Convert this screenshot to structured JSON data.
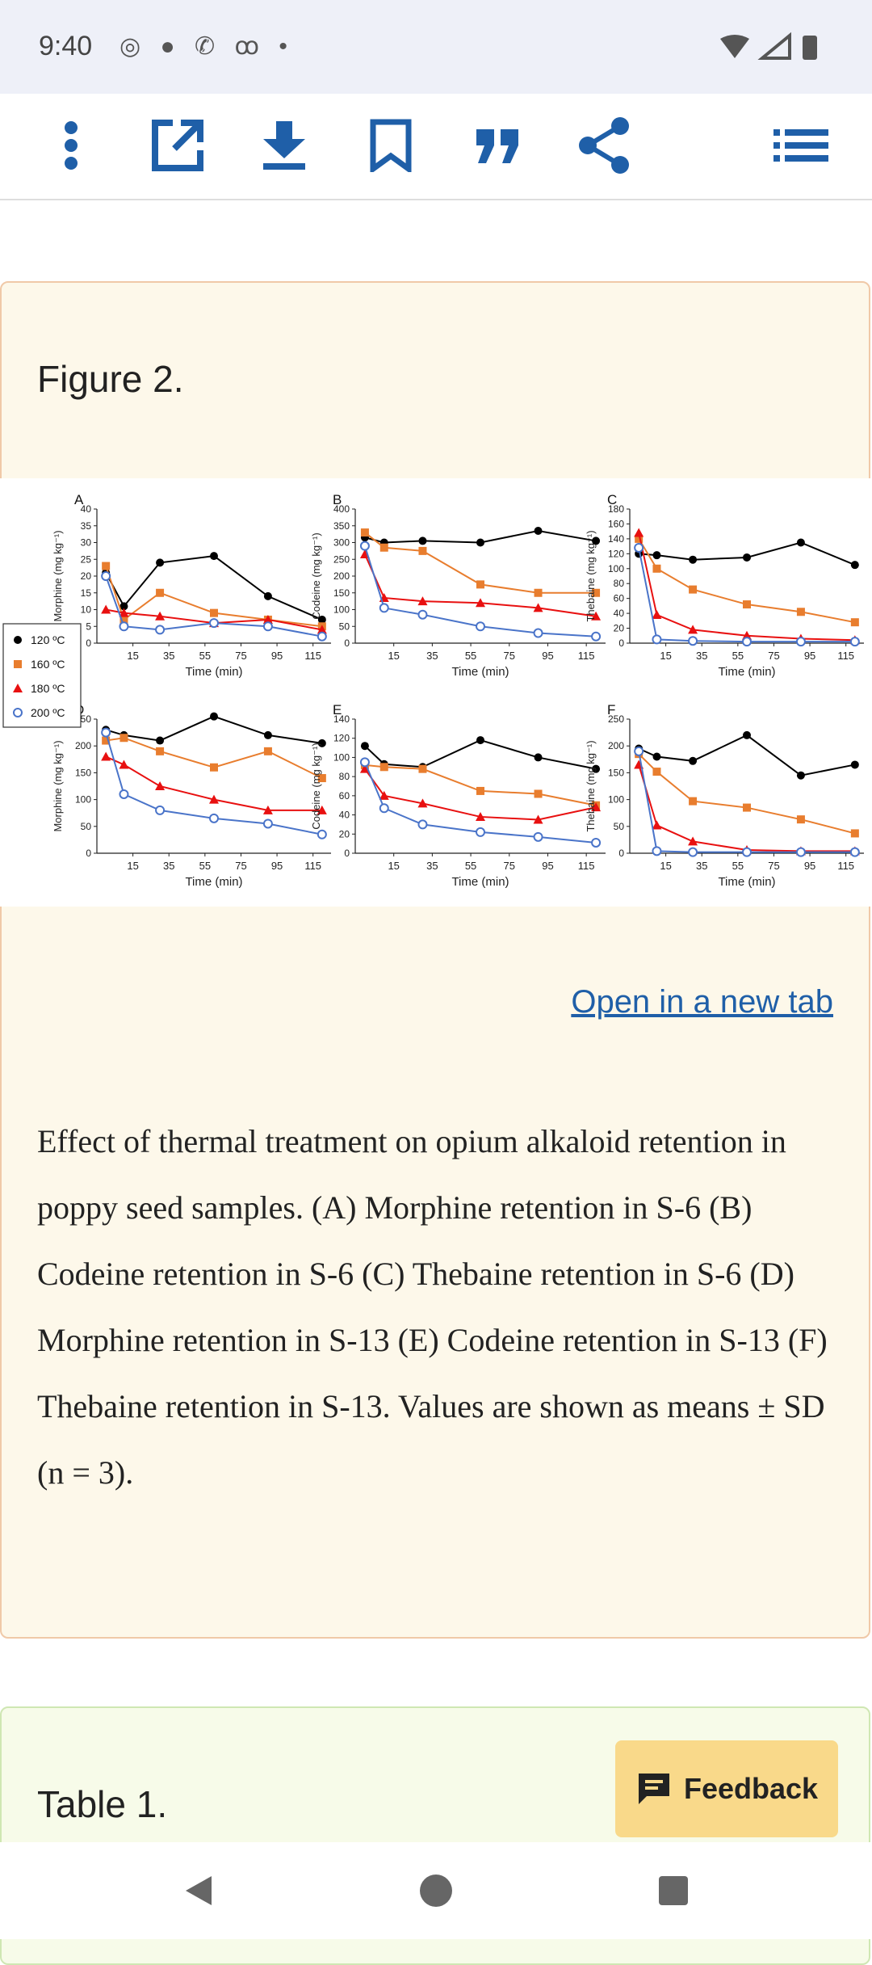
{
  "status": {
    "time": "9:40",
    "left_icons": [
      "whatsapp-icon",
      "chat-icon",
      "phone-icon",
      "voicemail-icon",
      "dot-icon"
    ],
    "right_icons": [
      "wifi-icon",
      "signal-icon",
      "battery-icon"
    ]
  },
  "toolbar": {
    "items": [
      "more-icon",
      "open-external-icon",
      "download-icon",
      "bookmark-icon",
      "quote-icon",
      "share-icon",
      "list-icon"
    ]
  },
  "figure": {
    "title": "Figure 2.",
    "open_link": "Open in a new tab",
    "caption": "Effect of thermal treatment on opium alkaloid retention in poppy seed samples. (A) Morphine retention in S-6 (B) Codeine retention in S-6 (C) Thebaine retention in S-6 (D) Morphine retention in S-13 (E) Codeine retention in S-13 (F) Thebaine retention in S-13. Values are shown as means ± SD (n = 3)."
  },
  "legend": [
    {
      "label": "120 ºC",
      "color": "#000000",
      "marker": "circle-filled"
    },
    {
      "label": "160 ºC",
      "color": "#e87d2e",
      "marker": "square"
    },
    {
      "label": "180 ºC",
      "color": "#e81010",
      "marker": "triangle"
    },
    {
      "label": "200 ºC",
      "color": "#4a74c9",
      "marker": "circle-open"
    }
  ],
  "chart_data": [
    {
      "type": "line",
      "panel": "A",
      "ylabel": "Morphine (mg kg⁻¹)",
      "xlabel": "Time (min)",
      "x": [
        0,
        10,
        30,
        60,
        90,
        120
      ],
      "ylim": [
        0,
        40
      ],
      "yticks": [
        0,
        5,
        10,
        15,
        20,
        25,
        30,
        35,
        40
      ],
      "series": [
        {
          "name": "120 ºC",
          "values": [
            21,
            11,
            24,
            26,
            14,
            7
          ]
        },
        {
          "name": "160 ºC",
          "values": [
            23,
            7,
            15,
            9,
            7,
            5
          ]
        },
        {
          "name": "180 ºC",
          "values": [
            10,
            9,
            8,
            6,
            7,
            4
          ]
        },
        {
          "name": "200 ºC",
          "values": [
            20,
            5,
            4,
            6,
            5,
            2
          ]
        }
      ]
    },
    {
      "type": "line",
      "panel": "B",
      "ylabel": "Codeine (mg kg⁻¹)",
      "xlabel": "Time (min)",
      "x": [
        0,
        10,
        30,
        60,
        90,
        120
      ],
      "ylim": [
        0,
        400
      ],
      "yticks": [
        0,
        50,
        100,
        150,
        200,
        250,
        300,
        350,
        400
      ],
      "series": [
        {
          "name": "120 ºC",
          "values": [
            315,
            300,
            305,
            300,
            335,
            305
          ]
        },
        {
          "name": "160 ºC",
          "values": [
            330,
            285,
            275,
            175,
            150,
            150
          ]
        },
        {
          "name": "180 ºC",
          "values": [
            265,
            135,
            125,
            120,
            105,
            80
          ]
        },
        {
          "name": "200 ºC",
          "values": [
            290,
            105,
            85,
            50,
            30,
            20
          ]
        }
      ]
    },
    {
      "type": "line",
      "panel": "C",
      "ylabel": "Thebaine (mg kg⁻¹)",
      "xlabel": "Time (min)",
      "x": [
        0,
        10,
        30,
        60,
        90,
        120
      ],
      "ylim": [
        0,
        180
      ],
      "yticks": [
        0,
        20,
        40,
        60,
        80,
        100,
        120,
        140,
        160,
        180
      ],
      "series": [
        {
          "name": "120 ºC",
          "values": [
            120,
            118,
            112,
            115,
            135,
            105
          ]
        },
        {
          "name": "160 ºC",
          "values": [
            140,
            100,
            72,
            52,
            42,
            28
          ]
        },
        {
          "name": "180 ºC",
          "values": [
            148,
            38,
            18,
            10,
            6,
            4
          ]
        },
        {
          "name": "200 ºC",
          "values": [
            128,
            5,
            3,
            2,
            2,
            2
          ]
        }
      ]
    },
    {
      "type": "line",
      "panel": "D",
      "ylabel": "Morphine (mg kg⁻¹)",
      "xlabel": "Time (min)",
      "x": [
        0,
        10,
        30,
        60,
        90,
        120
      ],
      "ylim": [
        0,
        250
      ],
      "yticks": [
        0,
        50,
        100,
        150,
        200,
        250
      ],
      "series": [
        {
          "name": "120 ºC",
          "values": [
            230,
            220,
            210,
            255,
            220,
            205
          ]
        },
        {
          "name": "160 ºC",
          "values": [
            210,
            215,
            190,
            160,
            190,
            140
          ]
        },
        {
          "name": "180 ºC",
          "values": [
            180,
            165,
            125,
            100,
            80,
            80
          ]
        },
        {
          "name": "200 ºC",
          "values": [
            225,
            110,
            80,
            65,
            55,
            35
          ]
        }
      ]
    },
    {
      "type": "line",
      "panel": "E",
      "ylabel": "Codeine (mg kg⁻¹)",
      "xlabel": "Time (min)",
      "x": [
        0,
        10,
        30,
        60,
        90,
        120
      ],
      "ylim": [
        0,
        140
      ],
      "yticks": [
        0,
        20,
        40,
        60,
        80,
        100,
        120,
        140
      ],
      "series": [
        {
          "name": "120 ºC",
          "values": [
            112,
            93,
            90,
            118,
            100,
            88
          ]
        },
        {
          "name": "160 ºC",
          "values": [
            92,
            90,
            88,
            65,
            62,
            50
          ]
        },
        {
          "name": "180 ºC",
          "values": [
            88,
            60,
            52,
            38,
            35,
            48
          ]
        },
        {
          "name": "200 ºC",
          "values": [
            95,
            47,
            30,
            22,
            17,
            11
          ]
        }
      ]
    },
    {
      "type": "line",
      "panel": "F",
      "ylabel": "Thebaine (mg kg⁻¹)",
      "xlabel": "Time (min)",
      "x": [
        0,
        10,
        30,
        60,
        90,
        120
      ],
      "ylim": [
        0,
        250
      ],
      "yticks": [
        0,
        50,
        100,
        150,
        200,
        250
      ],
      "series": [
        {
          "name": "120 ºC",
          "values": [
            195,
            180,
            172,
            220,
            145,
            165
          ]
        },
        {
          "name": "160 ºC",
          "values": [
            185,
            152,
            97,
            85,
            63,
            37
          ]
        },
        {
          "name": "180 ºC",
          "values": [
            165,
            52,
            22,
            6,
            4,
            4
          ]
        },
        {
          "name": "200 ºC",
          "values": [
            190,
            4,
            2,
            2,
            2,
            2
          ]
        }
      ]
    }
  ],
  "table": {
    "title": "Table 1."
  },
  "feedback": {
    "label": "Feedback"
  },
  "nav": {
    "items": [
      "back-icon",
      "home-icon",
      "recents-icon"
    ]
  }
}
